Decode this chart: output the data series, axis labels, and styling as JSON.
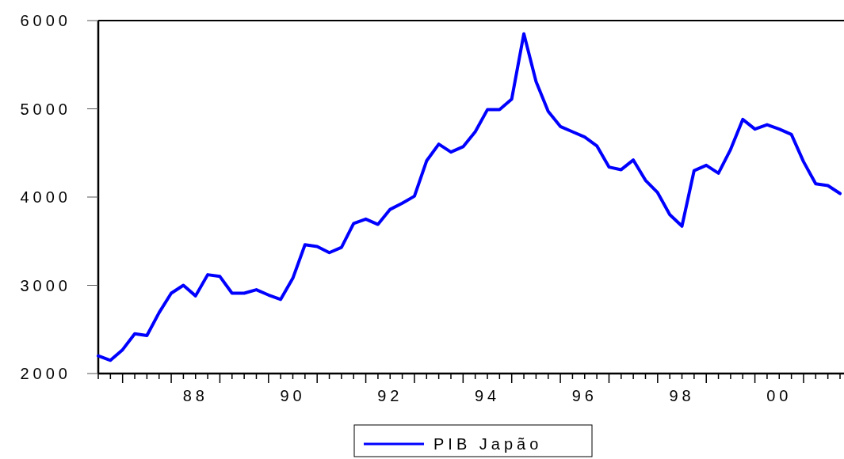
{
  "chart_data": {
    "type": "line",
    "categories": [
      null,
      null,
      null,
      null,
      null,
      null,
      null,
      null,
      "88",
      null,
      null,
      null,
      null,
      null,
      null,
      null,
      "90",
      null,
      null,
      null,
      null,
      null,
      null,
      null,
      "92",
      null,
      null,
      null,
      null,
      null,
      null,
      null,
      "94",
      null,
      null,
      null,
      null,
      null,
      null,
      null,
      "96",
      null,
      null,
      null,
      null,
      null,
      null,
      null,
      "98",
      null,
      null,
      null,
      null,
      null,
      null,
      null,
      "00",
      null,
      null,
      null,
      null,
      null
    ],
    "series": [
      {
        "name": "PIB Japão",
        "color": "#0000ff",
        "values": [
          2200,
          2150,
          2270,
          2450,
          2430,
          2690,
          2910,
          3000,
          2880,
          3120,
          3100,
          2910,
          2910,
          2950,
          2890,
          2840,
          3080,
          3460,
          3440,
          3370,
          3430,
          3700,
          3750,
          3690,
          3860,
          3930,
          4010,
          4410,
          4600,
          4510,
          4570,
          4740,
          4990,
          4990,
          5110,
          5850,
          5310,
          4970,
          4800,
          4740,
          4680,
          4580,
          4340,
          4310,
          4420,
          4190,
          4050,
          3800,
          3670,
          4300,
          4360,
          4270,
          4540,
          4880,
          4770,
          4820,
          4770,
          4710,
          4400,
          4150,
          4130,
          4040
        ]
      }
    ],
    "ylim": [
      2000,
      6000
    ],
    "yticks": [
      2000,
      3000,
      4000,
      5000,
      6000
    ],
    "grid": false,
    "legend": "bottom",
    "marker": "none",
    "line_style": "solid"
  }
}
